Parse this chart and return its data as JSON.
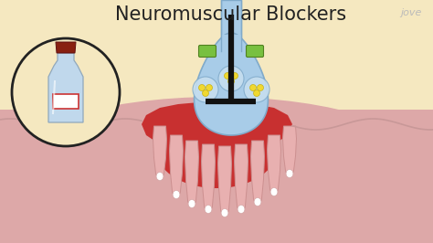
{
  "title": "Neuromuscular Blockers",
  "title_fontsize": 15,
  "title_color": "#222222",
  "bg_cream": "#F5E8C0",
  "bg_pink": "#E8B8B8",
  "muscle_pink": "#DDA8A8",
  "red_dark": "#C83030",
  "nerve_blue": "#A8CCE8",
  "nerve_border": "#80AACA",
  "axon_blue": "#A8CCE8",
  "green_tab": "#78C040",
  "vesicle_bg": "#C8E0F0",
  "vesicle_yellow": "#F0D830",
  "vesicle_yellow_border": "#C0A800",
  "block_color": "#111111",
  "fold_pink": "#E8AAAA",
  "fold_border": "#CC8888",
  "fold_tip_white": "#F5F0F0",
  "muscle_surface_pink": "#E0B0B0",
  "bottle_oval_bg": "#F5E8C0",
  "bottle_oval_border": "#222222",
  "bottle_glass": "#C0D8EC",
  "bottle_glass_border": "#90A8BC",
  "bottle_cap": "#882010",
  "bottle_label_bg": "#FFFFFF",
  "bottle_label_border": "#CC3333",
  "jove_color": "#BBBBBB"
}
